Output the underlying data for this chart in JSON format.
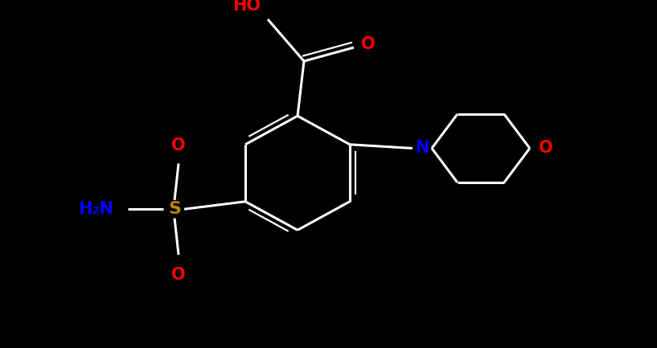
{
  "background_color": "#000000",
  "bond_color": "#ffffff",
  "lw": 2.2,
  "lw_inner": 1.6,
  "red": "#ff0000",
  "blue": "#0000ff",
  "gold": "#b8860b",
  "fig_width": 8.17,
  "fig_height": 4.33,
  "dpi": 100,
  "xlim": [
    0,
    817
  ],
  "ylim": [
    0,
    433
  ]
}
